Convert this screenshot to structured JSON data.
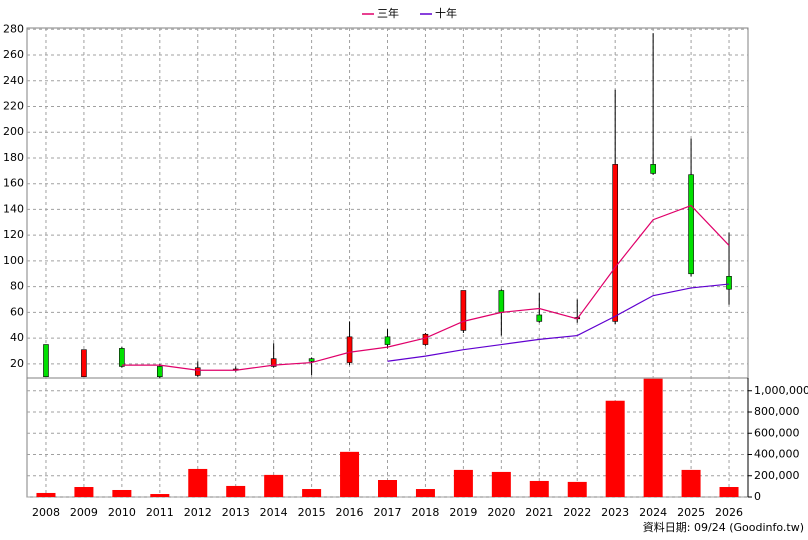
{
  "chart_data": [
    {
      "type": "candlestick",
      "categories": [
        "2008",
        "2009",
        "2010",
        "2011",
        "2012",
        "2013",
        "2014",
        "2015",
        "2016",
        "2017",
        "2018",
        "2019",
        "2020",
        "2021",
        "2022",
        "2023",
        "2024",
        "2025",
        "2026"
      ],
      "open": [
        35,
        10,
        32,
        18,
        11,
        15,
        18,
        24,
        21,
        41,
        35,
        46,
        77,
        58,
        55,
        53,
        175,
        167,
        88
      ],
      "high": [
        35,
        31,
        33,
        20,
        22,
        18,
        36,
        25,
        53,
        47,
        44,
        77,
        78,
        75,
        70,
        233,
        277,
        195,
        122
      ],
      "low": [
        10,
        10,
        17,
        9,
        10,
        14,
        17,
        11,
        19,
        32,
        34,
        44,
        42,
        52,
        52,
        51,
        167,
        88,
        66
      ],
      "close": [
        10,
        31,
        18,
        10,
        17,
        16,
        24,
        22,
        41,
        35,
        43,
        77,
        60,
        53,
        56,
        175,
        168,
        90,
        78
      ],
      "up_color": "#ff0000",
      "down_color": "#00e000",
      "series": [
        {
          "name": "三年",
          "color": "#e0006a",
          "values": [
            null,
            null,
            19,
            19,
            15,
            15,
            19,
            21,
            29,
            33,
            40,
            53,
            60,
            63,
            55,
            95,
            132,
            143,
            112
          ]
        },
        {
          "name": "十年",
          "color": "#6000d0",
          "values": [
            null,
            null,
            null,
            null,
            null,
            null,
            null,
            null,
            null,
            22,
            26,
            31,
            35,
            39,
            42,
            57,
            73,
            79,
            82
          ]
        }
      ],
      "ylim": [
        9,
        281
      ],
      "yticks": [
        20,
        40,
        60,
        80,
        100,
        120,
        140,
        160,
        180,
        200,
        220,
        240,
        260,
        280
      ],
      "grid": true,
      "source": "資料日期: 09/24 (Goodinfo.tw)"
    },
    {
      "type": "bar",
      "color": "#ff0000",
      "values": [
        38000,
        94000,
        66000,
        28000,
        264000,
        104000,
        208000,
        75000,
        425000,
        160000,
        75000,
        255000,
        236000,
        151000,
        142000,
        906000,
        1113000,
        255000,
        94000
      ],
      "ylim": [
        0,
        1120000
      ],
      "yticks": [
        0,
        {
          "value": 200000,
          "label": "200,000"
        },
        {
          "value": 400000,
          "label": "400,000"
        },
        {
          "value": 600000,
          "label": "600,000"
        },
        {
          "value": 800000,
          "label": "800,000"
        },
        {
          "value": 1000000,
          "label": "1,000,000"
        }
      ],
      "grid": true
    }
  ]
}
